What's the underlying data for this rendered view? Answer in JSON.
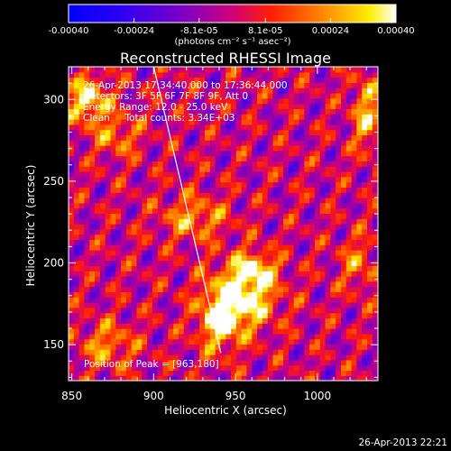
{
  "chart_data": {
    "type": "heatmap",
    "title": "Reconstructed RHESSI Image",
    "xlabel": "Heliocentric X (arcsec)",
    "ylabel": "Heliocentric Y (arcsec)",
    "xlim": [
      848,
      1037
    ],
    "ylim": [
      128,
      320
    ],
    "xticks": [
      850,
      900,
      950,
      1000
    ],
    "yticks": [
      150,
      200,
      250,
      300
    ],
    "colorbar": {
      "ticks": [
        "-0.00040",
        "-0.00024",
        "-8.1e-05",
        "8.1e-05",
        "0.00024",
        "0.00040"
      ],
      "tick_values": [
        -0.0004,
        -0.00024,
        -8.1e-05,
        8.1e-05,
        0.00024,
        0.0004
      ],
      "range": [
        -0.0004,
        0.0004
      ],
      "unit": "(photons cm⁻² s⁻¹ asec⁻²)",
      "colormap": [
        "#0000ff",
        "#6a00d8",
        "#c000a0",
        "#ff2200",
        "#ff8800",
        "#ffee00",
        "#ffffff"
      ]
    },
    "annotations": [
      "26-Apr-2013 17:34:40.000 to 17:36:44.000",
      "Detectors: 3F 5F 6F 7F 8F 9F, Att 0",
      "Energy Range: 12.0 - 25.0 keV",
      "Clean     Total counts: 3.34E+03"
    ],
    "peak_label": "Position of Peak = [963,180]",
    "peak": [
      963,
      180
    ],
    "limb_line": [
      [
        900,
        320
      ],
      [
        941,
        145
      ]
    ],
    "sources": [
      {
        "x": 955,
        "y": 180,
        "amp": 0.0004,
        "sx": 14,
        "sy": 14
      },
      {
        "x": 940,
        "y": 165,
        "amp": 0.00034,
        "sx": 9,
        "sy": 13
      },
      {
        "x": 962,
        "y": 197,
        "amp": 0.00026,
        "sx": 9,
        "sy": 7
      },
      {
        "x": 925,
        "y": 228,
        "amp": 0.00024,
        "sx": 14,
        "sy": 9
      },
      {
        "x": 860,
        "y": 300,
        "amp": 0.00036,
        "sx": 9,
        "sy": 10
      },
      {
        "x": 878,
        "y": 278,
        "amp": 0.0002,
        "sx": 10,
        "sy": 9
      },
      {
        "x": 872,
        "y": 150,
        "amp": 0.00022,
        "sx": 12,
        "sy": 10
      },
      {
        "x": 1030,
        "y": 292,
        "amp": 0.00028,
        "sx": 6,
        "sy": 16
      },
      {
        "x": 1025,
        "y": 200,
        "amp": 0.00018,
        "sx": 8,
        "sy": 12
      }
    ]
  },
  "footer": {
    "timestamp": "26-Apr-2013 22:21"
  }
}
